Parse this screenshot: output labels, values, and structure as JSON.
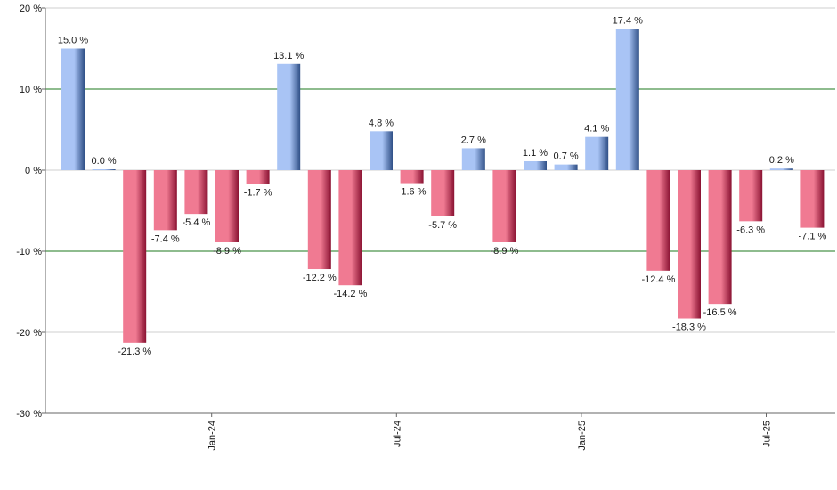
{
  "chart_data": {
    "type": "bar",
    "title": "",
    "xlabel": "",
    "ylabel": "",
    "ylim": [
      -30,
      20
    ],
    "y_ticks": [
      20,
      10,
      0,
      -10,
      -20,
      -30
    ],
    "y_tick_labels": [
      "20 %",
      "10 %",
      "0 %",
      "-10 %",
      "-20 %",
      "-30 %"
    ],
    "accent_grid_values": [
      10,
      -10
    ],
    "grid": true,
    "legend": "none",
    "x_ticks": [
      {
        "label": "Jan-24",
        "after_index": 4
      },
      {
        "label": "Jul-24",
        "after_index": 10
      },
      {
        "label": "Jan-25",
        "after_index": 16
      },
      {
        "label": "Jul-25",
        "after_index": 22
      }
    ],
    "values": [
      15.0,
      0.0,
      -21.3,
      -7.4,
      -5.4,
      -8.9,
      -1.7,
      13.1,
      -12.2,
      -14.2,
      4.8,
      -1.6,
      -5.7,
      2.7,
      -8.9,
      1.1,
      0.7,
      4.1,
      17.4,
      -12.4,
      -18.3,
      -16.5,
      -6.3,
      0.2,
      -7.1
    ],
    "data_labels": [
      "15.0 %",
      "0.0 %",
      "-21.3 %",
      "-7.4 %",
      "-5.4 %",
      "-8.9 %",
      "-1.7 %",
      "13.1 %",
      "-12.2 %",
      "-14.2 %",
      "4.8 %",
      "-1.6 %",
      "-5.7 %",
      "2.7 %",
      "-8.9 %",
      "1.1 %",
      "0.7 %",
      "4.1 %",
      "17.4 %",
      "-12.4 %",
      "-18.3 %",
      "-16.5 %",
      "-6.3 %",
      "0.2 %",
      "-7.1 %"
    ],
    "colors": {
      "positive_light": "#a9c4f5",
      "positive_dark": "#2f4f86",
      "negative_light": "#f07a92",
      "negative_dark": "#8a1232",
      "grid": "#cfcfcf",
      "accent_grid": "#1e7a1e",
      "axis": "#666666"
    }
  }
}
